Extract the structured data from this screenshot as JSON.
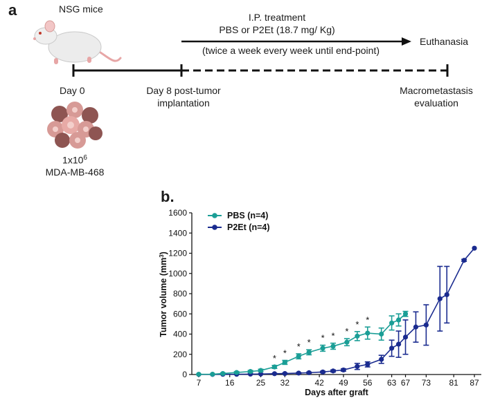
{
  "panel_a": {
    "label": "a",
    "mouse_label": "NSG mice",
    "treatment_title": "I.P. treatment",
    "treatment_drug": "PBS or P2Et (18.7 mg/ Kg)",
    "treatment_schedule": "(twice a week every week until end-point)",
    "endpoint": "Euthanasia",
    "day0": "Day 0",
    "day8_line1": "Day 8 post-tumor",
    "day8_line2": "implantation",
    "macro_line1": "Macrometastasis",
    "macro_line2": "evaluation",
    "cells_base": "1x10",
    "cells_exp": "6",
    "cell_line": "MDA-MB-468",
    "colors": {
      "mouse_body": "#ececec",
      "mouse_pink": "#e7a6a6",
      "tumor": "#d79a96",
      "tumor_dark": "#8e5552"
    }
  },
  "panel_b": {
    "label": "b."
  },
  "chart_data": {
    "type": "line",
    "xlabel": "Days after graft",
    "ylabel_main": "Tumor volume (mm",
    "ylabel_sup": "3",
    "ylabel_end": ")",
    "ylim": [
      0,
      1600
    ],
    "yticks": [
      0,
      200,
      400,
      600,
      800,
      1000,
      1200,
      1400,
      1600
    ],
    "xticks": [
      7,
      16,
      25,
      32,
      42,
      49,
      56,
      63,
      67,
      73,
      81,
      87
    ],
    "xlim": [
      5,
      89
    ],
    "legend": {
      "position": "top-left"
    },
    "significance_marker": "*",
    "significant_days": [
      29,
      32,
      36,
      39,
      43,
      46,
      50,
      53,
      56
    ],
    "series": [
      {
        "name": "PBS",
        "legend_name": "PBS",
        "legend_n": "(n=4)",
        "color": "#1a9e96",
        "x": [
          7,
          11,
          14,
          18,
          22,
          25,
          29,
          32,
          36,
          39,
          43,
          46,
          50,
          53,
          56,
          60,
          63,
          65,
          67
        ],
        "y": [
          2,
          3,
          10,
          20,
          30,
          40,
          75,
          120,
          180,
          220,
          260,
          280,
          320,
          380,
          410,
          400,
          510,
          540,
          600
        ],
        "err": [
          1,
          2,
          6,
          8,
          10,
          12,
          15,
          20,
          25,
          25,
          30,
          30,
          35,
          45,
          60,
          60,
          70,
          60,
          25
        ]
      },
      {
        "name": "P2Et",
        "legend_name": "P2Et",
        "legend_n": "(n=4)",
        "color": "#1a2b8f",
        "x": [
          7,
          11,
          14,
          18,
          22,
          25,
          29,
          32,
          36,
          39,
          43,
          46,
          49,
          53,
          56,
          60,
          63,
          65,
          67,
          70,
          73,
          77,
          79,
          84,
          87
        ],
        "y": [
          1,
          1,
          2,
          2,
          4,
          5,
          8,
          10,
          14,
          18,
          25,
          35,
          45,
          80,
          100,
          150,
          260,
          300,
          370,
          470,
          490,
          750,
          790,
          1130,
          1250
        ],
        "err": [
          0,
          0,
          1,
          1,
          2,
          2,
          3,
          4,
          5,
          6,
          8,
          10,
          12,
          30,
          25,
          40,
          80,
          130,
          170,
          150,
          200,
          320,
          280,
          10,
          0
        ]
      }
    ]
  }
}
